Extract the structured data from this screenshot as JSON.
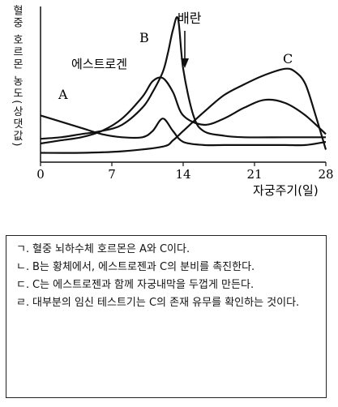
{
  "figure": {
    "y_axis_title": "혈중 호르몬 농도(상댓값)",
    "x_axis_title": "자궁주기(일)",
    "x_ticks": [
      "0",
      "7",
      "14",
      "21",
      "28"
    ],
    "labels": {
      "a": "A",
      "b": "B",
      "c": "C",
      "estrogen": "에스트로겐",
      "ovulation": "배란"
    }
  },
  "chart_data": {
    "type": "line",
    "xlabel": "자궁주기(일)",
    "ylabel": "혈중 호르몬 농도(상댓값)",
    "xlim": [
      0,
      28
    ],
    "ylim": [
      0,
      10
    ],
    "grid": false,
    "annotation": "배란",
    "annotation_x": 14,
    "series": [
      {
        "name": "A",
        "x": [
          0,
          2,
          4,
          6,
          8,
          10,
          11,
          12,
          13,
          14,
          16,
          18,
          20,
          22,
          24,
          26,
          28
        ],
        "y": [
          3.0,
          2.6,
          2.2,
          1.8,
          1.6,
          1.6,
          2.0,
          2.8,
          2.0,
          1.3,
          1.1,
          1.1,
          1.1,
          1.1,
          1.1,
          1.1,
          1.3
        ]
      },
      {
        "name": "B",
        "x": [
          0,
          2,
          4,
          6,
          8,
          10,
          11,
          12,
          12.5,
          13,
          13.5,
          14,
          15,
          16,
          18,
          20,
          24,
          28
        ],
        "y": [
          1.5,
          1.6,
          1.8,
          2.0,
          2.4,
          3.5,
          4.5,
          5.8,
          7.0,
          8.5,
          9.2,
          6.0,
          3.0,
          2.0,
          1.7,
          1.6,
          1.6,
          1.6
        ]
      },
      {
        "name": "에스트로겐",
        "x": [
          0,
          2,
          4,
          6,
          8,
          10,
          11,
          12,
          13,
          14,
          16,
          18,
          20,
          22,
          24,
          26,
          28
        ],
        "y": [
          1.2,
          1.4,
          1.6,
          2.0,
          2.8,
          4.2,
          5.2,
          5.4,
          4.5,
          3.0,
          2.4,
          2.8,
          3.5,
          4.0,
          3.8,
          3.0,
          1.8
        ]
      },
      {
        "name": "C",
        "x": [
          0,
          4,
          8,
          12,
          13,
          14,
          16,
          18,
          20,
          22,
          24,
          25,
          26,
          27,
          28
        ],
        "y": [
          0.6,
          0.6,
          0.7,
          1.0,
          1.4,
          2.0,
          3.2,
          4.3,
          5.0,
          5.6,
          6.0,
          5.8,
          5.0,
          3.0,
          0.8
        ]
      }
    ]
  },
  "statements": [
    {
      "mark": "ㄱ.",
      "text": "혈중 뇌하수체 호르몬은 A와 C이다."
    },
    {
      "mark": "ㄴ.",
      "text": "B는 황체에서, 에스트로젠과 C의 분비를 촉진한다."
    },
    {
      "mark": "ㄷ.",
      "text": "C는 에스트로젠과 함께 자궁내막을 두껍게 만든다."
    },
    {
      "mark": "ㄹ.",
      "text": "대부분의 임신 테스트기는 C의 존재 유무를 확인하는 것이다."
    }
  ]
}
